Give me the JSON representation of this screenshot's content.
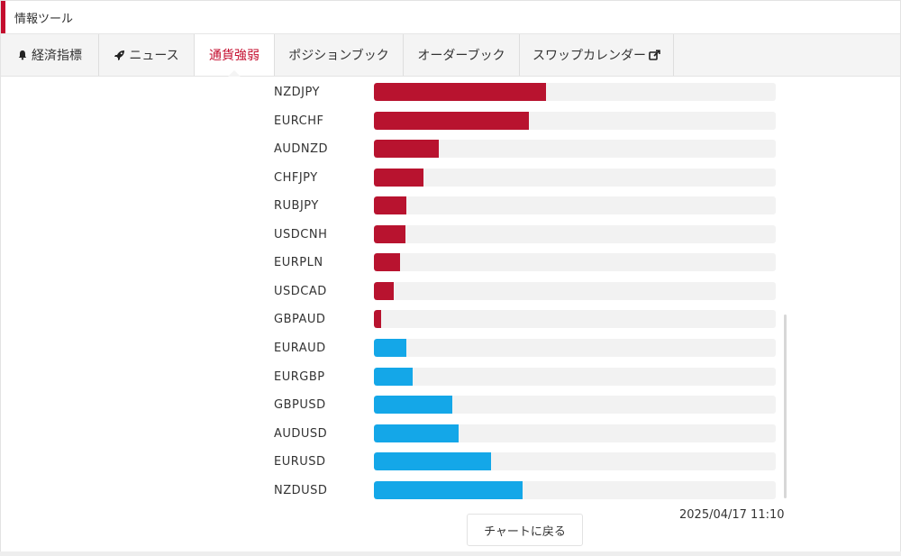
{
  "app": {
    "title": "情報ツール"
  },
  "tabs": [
    {
      "label": "経済指標",
      "icon": "bell-icon",
      "active": false
    },
    {
      "label": "ニュース",
      "icon": "rocket-icon",
      "active": false
    },
    {
      "label": "通貨強弱",
      "icon": "",
      "active": true
    },
    {
      "label": "ポジションブック",
      "icon": "",
      "active": false
    },
    {
      "label": "オーダーブック",
      "icon": "",
      "active": false
    },
    {
      "label": "スワップカレンダー",
      "icon": "external-link-icon",
      "active": false
    }
  ],
  "colors": {
    "accent": "#c40d2e",
    "strong": "#b8132f",
    "weak": "#14a7e8",
    "track": "#f2f2f2"
  },
  "strength": [
    {
      "pair": "NZDJPY",
      "value": 0.428,
      "direction": "strong"
    },
    {
      "pair": "EURCHF",
      "value": 0.385,
      "direction": "strong"
    },
    {
      "pair": "AUDNZD",
      "value": 0.161,
      "direction": "strong"
    },
    {
      "pair": "CHFJPY",
      "value": 0.123,
      "direction": "strong"
    },
    {
      "pair": "RUBJPY",
      "value": 0.08,
      "direction": "strong"
    },
    {
      "pair": "USDCNH",
      "value": 0.078,
      "direction": "strong"
    },
    {
      "pair": "EURPLN",
      "value": 0.065,
      "direction": "strong"
    },
    {
      "pair": "USDCAD",
      "value": 0.049,
      "direction": "strong"
    },
    {
      "pair": "GBPAUD",
      "value": 0.018,
      "direction": "strong"
    },
    {
      "pair": "EURAUD",
      "value": 0.081,
      "direction": "weak"
    },
    {
      "pair": "EURGBP",
      "value": 0.097,
      "direction": "weak"
    },
    {
      "pair": "GBPUSD",
      "value": 0.195,
      "direction": "weak"
    },
    {
      "pair": "AUDUSD",
      "value": 0.211,
      "direction": "weak"
    },
    {
      "pair": "EURUSD",
      "value": 0.291,
      "direction": "weak"
    },
    {
      "pair": "NZDUSD",
      "value": 0.37,
      "direction": "weak"
    }
  ],
  "footer": {
    "timestamp": "2025/04/17 11:10",
    "back_label": "チャートに戻る"
  }
}
